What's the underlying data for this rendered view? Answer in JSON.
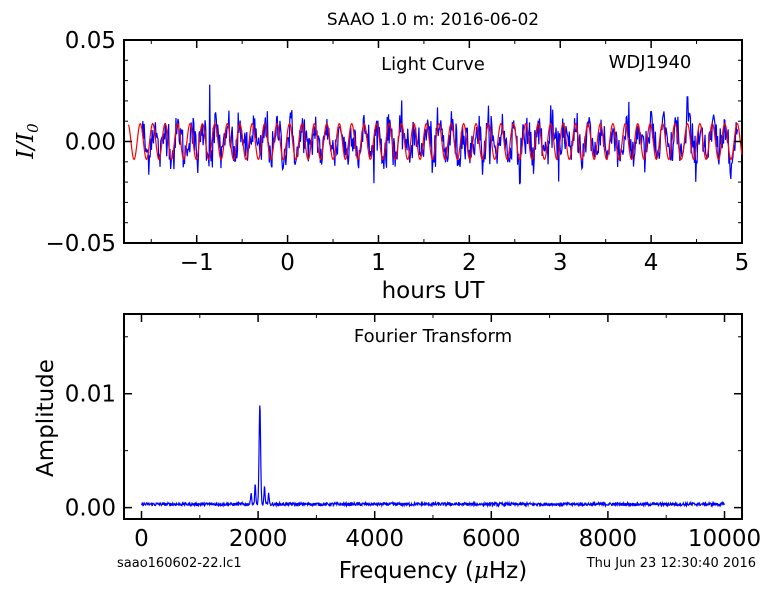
{
  "figure": {
    "title": "SAAO 1.0 m:  2016-06-02",
    "footer_left": "saao160602-22.lc1",
    "footer_right": "Thu Jun 23 12:30:40 2016"
  },
  "colors": {
    "data": "#0000ff",
    "model": "#ff0000",
    "axes": "#000000"
  },
  "chart_data": [
    {
      "type": "line",
      "name": "light-curve",
      "annotation": "Light Curve",
      "object_label": "WDJ1940",
      "xlabel": "hours UT",
      "ylabel_main": "I/I",
      "ylabel_sub": "0",
      "xlim": [
        -1.8,
        5.0
      ],
      "ylim": [
        -0.05,
        0.05
      ],
      "xticks": [
        -1,
        0,
        1,
        2,
        3,
        4,
        5
      ],
      "xtick_labels": [
        "−1",
        "0",
        "1",
        "2",
        "3",
        "4",
        "5"
      ],
      "yticks": [
        -0.05,
        0.0,
        0.05
      ],
      "ytick_labels": [
        "−0.05",
        "0.00",
        "0.05"
      ],
      "grid": false,
      "series": [
        {
          "role": "data",
          "x_start": -1.6,
          "x_end": 4.95,
          "n_points": 900,
          "mean": 0.0,
          "approx_scatter": 0.007,
          "peak_points": [
            {
              "x": -0.86,
              "y": 0.028
            },
            {
              "x": 4.4,
              "y": 0.022
            },
            {
              "x": 2.55,
              "y": -0.021
            }
          ]
        },
        {
          "role": "model",
          "x_start": -1.75,
          "x_end": 5.0,
          "amplitude": 0.0088,
          "frequency_uHz": 2030,
          "mean": 0.0
        }
      ]
    },
    {
      "type": "line",
      "name": "fourier-transform",
      "annotation": "Fourier Transform",
      "xlabel_prefix": "Frequency (",
      "xlabel_mu": "μ",
      "xlabel_suffix": "Hz)",
      "ylabel": "Amplitude",
      "xlim": [
        -300,
        10300
      ],
      "ylim": [
        -0.001,
        0.017
      ],
      "xticks": [
        0,
        2000,
        4000,
        6000,
        8000,
        10000
      ],
      "xtick_labels": [
        "0",
        "2000",
        "4000",
        "6000",
        "8000",
        "10000"
      ],
      "yticks": [
        0.0,
        0.01
      ],
      "ytick_labels": [
        "0.00",
        "0.01"
      ],
      "grid": false,
      "series": [
        {
          "role": "data",
          "x_start": 0,
          "x_end": 10000,
          "noise_level": 0.0004,
          "peaks": [
            {
              "x": 2030,
              "y": 0.0087
            },
            {
              "x": 1950,
              "y": 0.0018
            },
            {
              "x": 2110,
              "y": 0.0016
            },
            {
              "x": 1880,
              "y": 0.0011
            },
            {
              "x": 2180,
              "y": 0.001
            }
          ]
        }
      ]
    }
  ]
}
